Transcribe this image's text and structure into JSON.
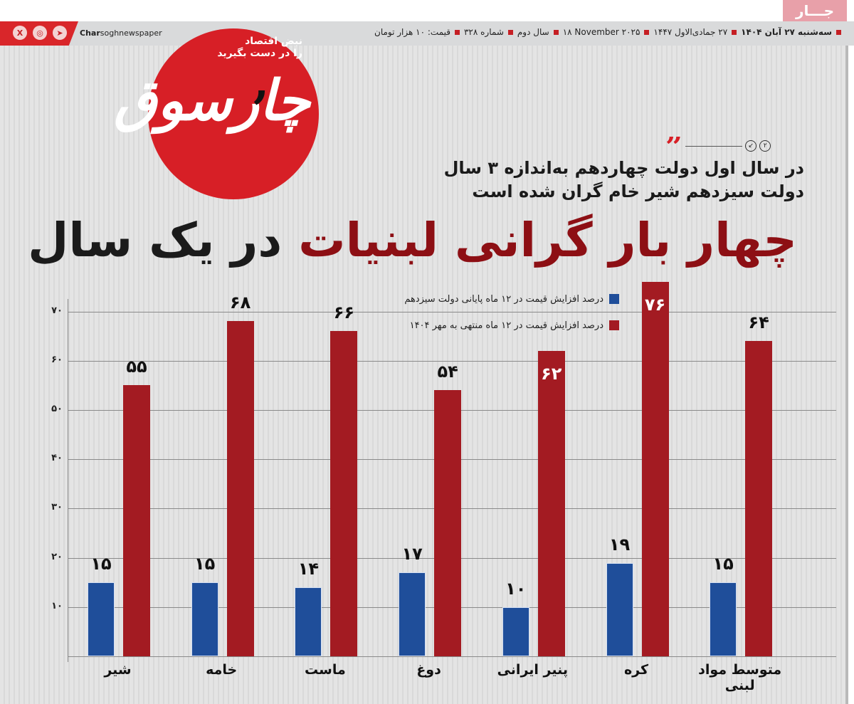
{
  "masthead": {
    "corner_tab": "جـــار",
    "social_icons": [
      "x-icon",
      "instagram-icon",
      "telegram-icon"
    ],
    "handle_bold": "Char",
    "handle_rest": "soghnewspaper",
    "dateline": {
      "weekday_date": "سه‌شنبه ۲۷ آبان ۱۴۰۴",
      "hijri_date": "۲۷ جمادی‌الاول ۱۴۴۷",
      "gregorian_date": "۱۸ November ۲۰۲۵",
      "year": "سال دوم",
      "issue": "شماره ۳۲۸",
      "price": "قیمت: ۱۰ هزار تومان"
    },
    "logo": {
      "tagline_1": "نبض اقتصاد",
      "tagline_2": "را در دست بگیرید",
      "wordmark": "چارسوق",
      "brand_color": "#d71f26"
    }
  },
  "article": {
    "kicker_number": "۲",
    "subhead_line_1": "در سال اول دولت چهاردهم به‌اندازه ۳ سال",
    "subhead_line_2": "دولت سیزدهم شیر خام گران شده است",
    "headline_red": "چهار بار گرانی لبنیات",
    "headline_dark": "در یک سال"
  },
  "chart_data": {
    "type": "bar",
    "title": "چهار بار گرانی لبنیات در یک سال",
    "categories": [
      "شیر",
      "خامه",
      "ماست",
      "دوغ",
      "پنیر ایرانی",
      "کره",
      "متوسط مواد لبنی"
    ],
    "series": [
      {
        "name": "درصد افزایش قیمت در ۱۲ ماه پایانی دولت سیزدهم",
        "color": "#1f4e9a",
        "values": [
          15,
          15,
          14,
          17,
          10,
          19,
          15
        ],
        "labels": [
          "۱۵",
          "۱۵",
          "۱۴",
          "۱۷",
          "۱۰",
          "۱۹",
          "۱۵"
        ]
      },
      {
        "name": "درصد افزایش قیمت در ۱۲ ماه منتهی به مهر ۱۴۰۴",
        "color": "#a31b22",
        "values": [
          55,
          68,
          66,
          54,
          62,
          76,
          64
        ],
        "labels": [
          "۵۵",
          "۶۸",
          "۶۶",
          "۵۴",
          "۶۲",
          "۷۶",
          "۶۴"
        ]
      }
    ],
    "yticks": [
      10,
      20,
      30,
      40,
      50,
      60,
      70
    ],
    "ytick_labels": [
      "۱۰",
      "۲۰",
      "۳۰",
      "۴۰",
      "۵۰",
      "۶۰",
      "۷۰"
    ],
    "ylim": [
      0,
      76
    ],
    "xlabel": "",
    "ylabel": "",
    "grid": true,
    "legend_position": "top-center"
  }
}
